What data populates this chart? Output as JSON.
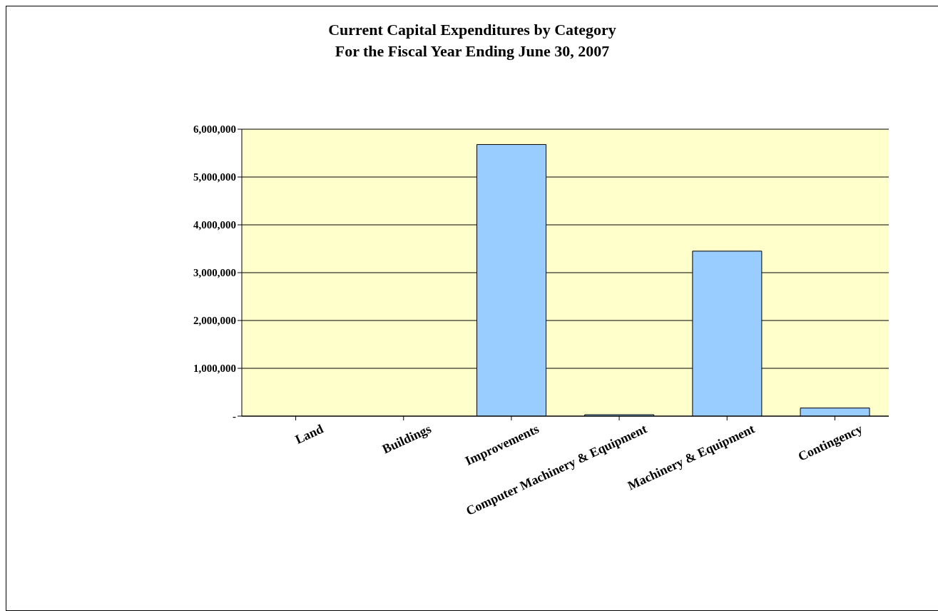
{
  "chart_data": {
    "type": "bar",
    "title": "Current Capital Expenditures by Category\nFor the Fiscal Year Ending June 30, 2007",
    "categories": [
      "Land",
      "Buildings",
      "Improvements",
      "Computer Machinery & Equipment",
      "Machinery & Equipment",
      "Contingency"
    ],
    "values": [
      0,
      0,
      5680000,
      30000,
      3450000,
      170000
    ],
    "color": "#99ccff",
    "ylim": [
      0,
      6000000
    ],
    "yticks": [
      {
        "value": 0,
        "label": "-"
      },
      {
        "value": 1000000,
        "label": "1,000,000"
      },
      {
        "value": 2000000,
        "label": "2,000,000"
      },
      {
        "value": 3000000,
        "label": "3,000,000"
      },
      {
        "value": 4000000,
        "label": "4,000,000"
      },
      {
        "value": 5000000,
        "label": "5,000,000"
      },
      {
        "value": 6000000,
        "label": "6,000,000"
      }
    ],
    "grid": "y"
  }
}
